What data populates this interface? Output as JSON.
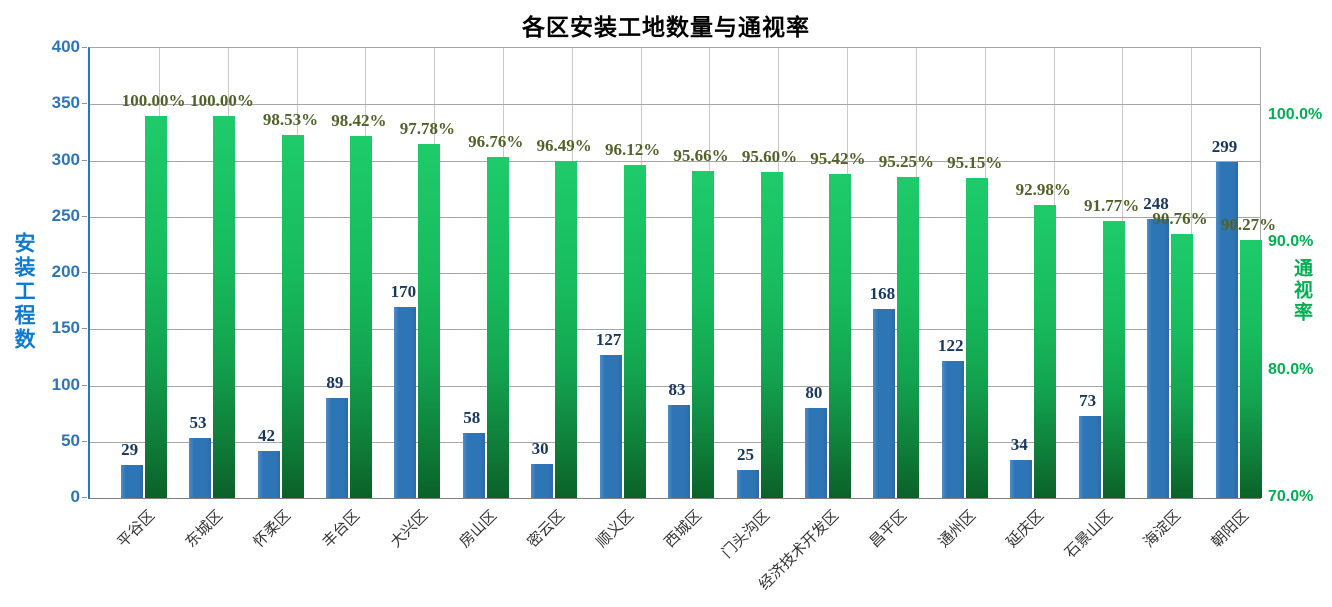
{
  "title": "各区安装工地数量与通视率",
  "chart_data": {
    "type": "bar",
    "title": "各区安装工地数量与通视率",
    "categories": [
      "平谷区",
      "东城区",
      "怀柔区",
      "丰台区",
      "大兴区",
      "房山区",
      "密云区",
      "顺义区",
      "西城区",
      "门头沟区",
      "经济技术开发区",
      "昌平区",
      "通州区",
      "延庆区",
      "石景山区",
      "海淀区",
      "朝阳区"
    ],
    "series": [
      {
        "name": "安装工程数",
        "axis": "left",
        "color": "#2E75B6",
        "label_color": "#17375D",
        "values": [
          29,
          53,
          42,
          89,
          170,
          58,
          30,
          127,
          83,
          25,
          80,
          168,
          122,
          34,
          73,
          248,
          299
        ],
        "labels": [
          "29",
          "53",
          "42",
          "89",
          "170",
          "58",
          "30",
          "127",
          "83",
          "25",
          "80",
          "168",
          "122",
          "34",
          "73",
          "248",
          "299"
        ]
      },
      {
        "name": "通视率",
        "axis": "right",
        "color": "#17BB5D",
        "label_color": "#4F6228",
        "values": [
          100.0,
          100.0,
          98.53,
          98.42,
          97.78,
          96.76,
          96.49,
          96.12,
          95.66,
          95.6,
          95.42,
          95.25,
          95.15,
          92.98,
          91.77,
          90.76,
          90.27
        ],
        "labels": [
          "100.00%",
          "100.00%",
          "98.53%",
          "98.42%",
          "97.78%",
          "96.76%",
          "96.49%",
          "96.12%",
          "95.66%",
          "95.60%",
          "95.42%",
          "95.25%",
          "95.15%",
          "92.98%",
          "91.77%",
          "90.76%",
          "90.27%"
        ]
      }
    ],
    "left_axis": {
      "title": "安装工程数",
      "color": "#2E75B6",
      "min": 0,
      "max": 400,
      "tick_step": 50,
      "tick_labels": [
        "0",
        "50",
        "100",
        "150",
        "200",
        "250",
        "300",
        "350",
        "400"
      ]
    },
    "right_axis": {
      "title": "通视率",
      "color": "#00B050",
      "min": 70,
      "max": 100,
      "tick_values": [
        70,
        80,
        90,
        100
      ],
      "tick_labels": [
        "70.0%",
        "80.0%",
        "90.0%",
        "100.0%"
      ]
    },
    "grid": true,
    "legend_position": "none"
  }
}
